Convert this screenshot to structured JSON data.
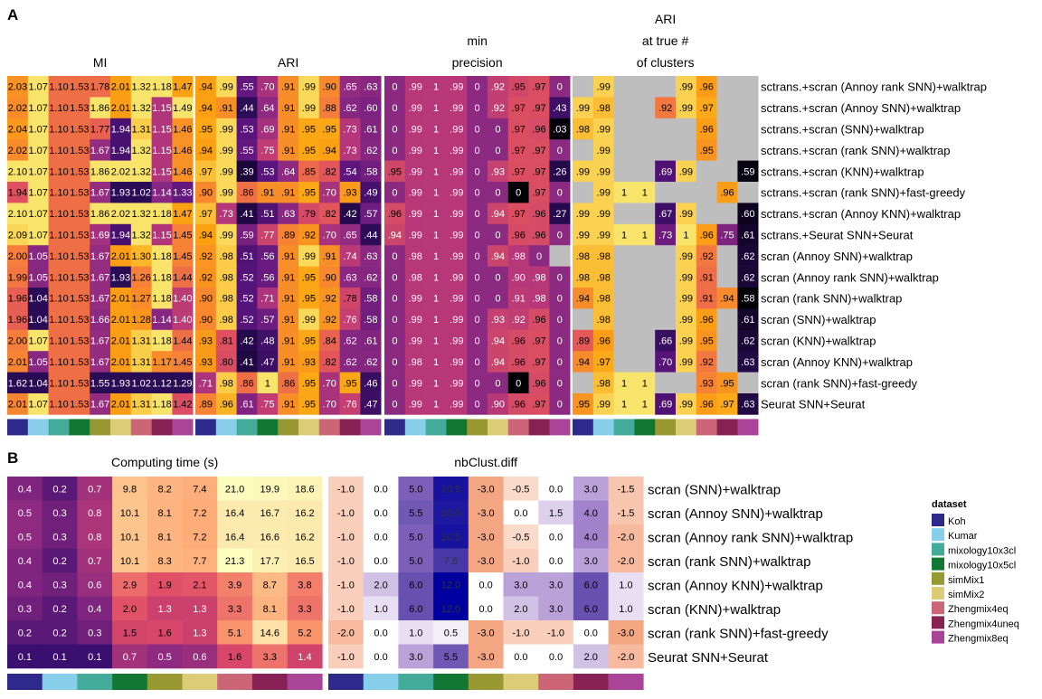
{
  "panel_letters": {
    "a": "A",
    "b": "B"
  },
  "legend": {
    "title": "dataset",
    "datasets": [
      {
        "name": "Koh",
        "color": "#2E2A8C"
      },
      {
        "name": "Kumar",
        "color": "#87CEEB"
      },
      {
        "name": "mixology10x3cl",
        "color": "#44AA99"
      },
      {
        "name": "mixology10x5cl",
        "color": "#117733"
      },
      {
        "name": "simMix1",
        "color": "#999933"
      },
      {
        "name": "simMix2",
        "color": "#DDCC77"
      },
      {
        "name": "Zhengmix4eq",
        "color": "#CC6677"
      },
      {
        "name": "Zhengmix4uneq",
        "color": "#882255"
      },
      {
        "name": "Zhengmix8eq",
        "color": "#AA4499"
      }
    ]
  },
  "chart_data": [
    {
      "type": "heatmap",
      "panel": "A",
      "title_mi": "MI",
      "title_ari": "ARI",
      "title_minprec": [
        "min",
        "precision"
      ],
      "title_ari_true": [
        "ARI",
        "at true #",
        "of clusters"
      ],
      "rows": [
        "sctrans.+scran (Annoy rank SNN)+walktrap",
        "sctrans.+scran (Annoy SNN)+walktrap",
        "sctrans.+scran (SNN)+walktrap",
        "sctrans.+scran (rank SNN)+walktrap",
        "sctrans.+scran (KNN)+walktrap",
        "sctrans.+scran (rank SNN)+fast-greedy",
        "sctrans.+scran (Annoy KNN)+walktrap",
        "sctrans.+Seurat SNN+Seurat",
        "scran (Annoy SNN)+walktrap",
        "scran (Annoy rank SNN)+walktrap",
        "scran (rank SNN)+walktrap",
        "scran (SNN)+walktrap",
        "scran (KNN)+walktrap",
        "scran (Annoy KNN)+walktrap",
        "scran (rank SNN)+fast-greedy",
        "Seurat SNN+Seurat"
      ],
      "mi": [
        [
          "2.03",
          "1.07",
          "1.10",
          "1.53",
          "1.78",
          "2.01",
          "1.32",
          "1.18",
          "1.47"
        ],
        [
          "2.02",
          "1.07",
          "1.10",
          "1.53",
          "1.86",
          "2.01",
          "1.32",
          "1.15",
          "1.49"
        ],
        [
          "2.04",
          "1.07",
          "1.10",
          "1.53",
          "1.77",
          "1.94",
          "1.31",
          "1.15",
          "1.46"
        ],
        [
          "2.02",
          "1.07",
          "1.10",
          "1.53",
          "1.67",
          "1.94",
          "1.32",
          "1.15",
          "1.46"
        ],
        [
          "2.10",
          "1.07",
          "1.10",
          "1.53",
          "1.86",
          "2.02",
          "1.32",
          "1.15",
          "1.46"
        ],
        [
          "1.94",
          "1.07",
          "1.10",
          "1.53",
          "1.67",
          "1.93",
          "1.02",
          "1.14",
          "1.33"
        ],
        [
          "2.10",
          "1.07",
          "1.10",
          "1.53",
          "1.86",
          "2.02",
          "1.32",
          "1.18",
          "1.47"
        ],
        [
          "2.09",
          "1.07",
          "1.10",
          "1.53",
          "1.69",
          "1.94",
          "1.32",
          "1.15",
          "1.45"
        ],
        [
          "2.00",
          "1.05",
          "1.10",
          "1.53",
          "1.67",
          "2.01",
          "1.30",
          "1.18",
          "1.45"
        ],
        [
          "1.99",
          "1.05",
          "1.10",
          "1.53",
          "1.67",
          "1.93",
          "1.26",
          "1.18",
          "1.44"
        ],
        [
          "1.96",
          "1.04",
          "1.10",
          "1.53",
          "1.67",
          "2.01",
          "1.27",
          "1.18",
          "1.40"
        ],
        [
          "1.96",
          "1.04",
          "1.10",
          "1.53",
          "1.66",
          "2.01",
          "1.28",
          "1.14",
          "1.40"
        ],
        [
          "2.00",
          "1.07",
          "1.10",
          "1.53",
          "1.67",
          "2.01",
          "1.31",
          "1.18",
          "1.44"
        ],
        [
          "2.01",
          "1.05",
          "1.10",
          "1.53",
          "1.67",
          "2.01",
          "1.31",
          "1.17",
          "1.45"
        ],
        [
          "1.62",
          "1.04",
          "1.10",
          "1.53",
          "1.55",
          "1.93",
          "1.02",
          "1.12",
          "1.29"
        ],
        [
          "2.01",
          "1.07",
          "1.10",
          "1.53",
          "1.67",
          "2.01",
          "1.31",
          "1.18",
          "1.42"
        ]
      ],
      "ari": [
        [
          ".94",
          ".99",
          ".55",
          ".70",
          ".91",
          ".99",
          ".90",
          ".65",
          ".63"
        ],
        [
          ".94",
          ".91",
          ".44",
          ".64",
          ".91",
          ".99",
          ".88",
          ".62",
          ".60"
        ],
        [
          ".95",
          ".99",
          ".53",
          ".69",
          ".91",
          ".95",
          ".95",
          ".73",
          ".61"
        ],
        [
          ".94",
          ".99",
          ".55",
          ".75",
          ".91",
          ".95",
          ".94",
          ".73",
          ".62"
        ],
        [
          ".97",
          ".99",
          ".39",
          ".53",
          ".64",
          ".85",
          ".82",
          ".54",
          ".58"
        ],
        [
          ".90",
          ".99",
          ".86",
          ".91",
          ".91",
          ".95",
          ".70",
          ".93",
          ".49"
        ],
        [
          ".97",
          ".73",
          ".41",
          ".51",
          ".63",
          ".79",
          ".82",
          ".42",
          ".57"
        ],
        [
          ".94",
          ".99",
          ".59",
          ".77",
          ".89",
          ".92",
          ".70",
          ".65",
          ".44"
        ],
        [
          ".92",
          ".98",
          ".51",
          ".56",
          ".91",
          ".99",
          ".91",
          ".74",
          ".63"
        ],
        [
          ".92",
          ".98",
          ".52",
          ".56",
          ".91",
          ".95",
          ".90",
          ".63",
          ".62"
        ],
        [
          ".90",
          ".98",
          ".52",
          ".71",
          ".91",
          ".95",
          ".92",
          ".78",
          ".58"
        ],
        [
          ".90",
          ".98",
          ".52",
          ".57",
          ".91",
          ".99",
          ".92",
          ".76",
          ".58"
        ],
        [
          ".93",
          ".81",
          ".42",
          ".48",
          ".91",
          ".95",
          ".84",
          ".62",
          ".61"
        ],
        [
          ".93",
          ".80",
          ".41",
          ".47",
          ".91",
          ".93",
          ".82",
          ".62",
          ".62"
        ],
        [
          ".71",
          ".98",
          ".86",
          "1",
          ".86",
          ".95",
          ".70",
          ".95",
          ".46"
        ],
        [
          ".89",
          ".96",
          ".61",
          ".75",
          ".91",
          ".95",
          ".70",
          ".76",
          ".47"
        ]
      ],
      "min_precision": [
        [
          "0",
          ".99",
          "1",
          ".99",
          "0",
          ".92",
          ".95",
          ".97",
          "0"
        ],
        [
          "0",
          ".99",
          "1",
          ".99",
          "0",
          ".92",
          ".97",
          ".97",
          ".43"
        ],
        [
          "0",
          ".99",
          "1",
          ".99",
          "0",
          "0",
          ".97",
          ".96",
          ".03"
        ],
        [
          "0",
          ".99",
          "1",
          ".99",
          "0",
          "0",
          ".97",
          ".97",
          "0"
        ],
        [
          ".95",
          ".99",
          "1",
          ".99",
          "0",
          ".93",
          ".97",
          ".97",
          ".26"
        ],
        [
          "0",
          ".99",
          "1",
          ".99",
          "0",
          "0",
          "0",
          ".97",
          "0"
        ],
        [
          ".96",
          ".99",
          "1",
          ".99",
          "0",
          ".94",
          ".97",
          ".96",
          ".27"
        ],
        [
          ".94",
          ".99",
          "1",
          ".99",
          "0",
          "0",
          ".96",
          ".96",
          "0"
        ],
        [
          "0",
          ".98",
          "1",
          ".99",
          "0",
          ".94",
          ".98",
          "0",
          ""
        ],
        [
          "0",
          ".98",
          "1",
          ".99",
          "0",
          "0",
          ".90",
          ".98",
          "0"
        ],
        [
          "0",
          ".99",
          "1",
          ".99",
          "0",
          "0",
          ".91",
          ".98",
          "0"
        ],
        [
          "0",
          ".99",
          "1",
          ".99",
          "0",
          ".93",
          ".92",
          ".96",
          "0"
        ],
        [
          "0",
          ".99",
          "1",
          ".99",
          "0",
          ".94",
          ".96",
          ".97",
          "0"
        ],
        [
          "0",
          ".98",
          "1",
          ".99",
          "0",
          ".94",
          ".96",
          ".97",
          "0"
        ],
        [
          "0",
          ".99",
          "1",
          ".99",
          "0",
          "0",
          "0",
          ".96",
          "0"
        ],
        [
          "0",
          ".99",
          "1",
          ".99",
          "0",
          ".90",
          ".96",
          ".97",
          "0"
        ]
      ],
      "ari_true": [
        [
          "",
          ".99",
          "",
          "",
          "",
          ".99",
          ".96",
          "",
          ""
        ],
        [
          ".99",
          ".98",
          "",
          "",
          ".92",
          ".99",
          ".97",
          "",
          ""
        ],
        [
          ".98",
          ".99",
          "",
          "",
          "",
          "",
          ".96",
          "",
          ""
        ],
        [
          "",
          ".99",
          "",
          "",
          "",
          "",
          ".95",
          "",
          ""
        ],
        [
          ".99",
          ".99",
          "",
          "",
          ".69",
          ".99",
          "",
          "",
          ".59"
        ],
        [
          "",
          ".99",
          "1",
          "1",
          "",
          "",
          "",
          ".96",
          ""
        ],
        [
          ".99",
          ".99",
          "",
          "",
          ".67",
          ".99",
          "",
          "",
          ".60"
        ],
        [
          ".99",
          ".99",
          "1",
          "1",
          ".73",
          "1",
          ".96",
          ".75",
          ".61"
        ],
        [
          ".98",
          ".98",
          "",
          "",
          "",
          ".99",
          ".92",
          "",
          ".62"
        ],
        [
          ".98",
          ".98",
          "",
          "",
          "",
          ".99",
          ".91",
          "",
          ".62"
        ],
        [
          ".94",
          ".98",
          "",
          "",
          "",
          ".99",
          ".91",
          ".94",
          ".58"
        ],
        [
          "",
          ".98",
          "",
          "",
          "",
          ".99",
          ".96",
          "",
          ".61"
        ],
        [
          ".89",
          ".96",
          "",
          "",
          ".66",
          ".99",
          ".95",
          "",
          ".62"
        ],
        [
          ".94",
          ".97",
          "",
          "",
          ".70",
          ".99",
          ".92",
          "",
          ".63"
        ],
        [
          "",
          ".98",
          "1",
          "1",
          "",
          "",
          ".93",
          ".95",
          ""
        ],
        [
          ".95",
          ".99",
          "1",
          "1",
          ".69",
          ".99",
          ".96",
          ".97",
          ".63"
        ]
      ]
    },
    {
      "type": "heatmap",
      "panel": "B",
      "title_time": "Computing time (s)",
      "title_nb": "nbClust.diff",
      "rows": [
        "scran (SNN)+walktrap",
        "scran (Annoy SNN)+walktrap",
        "scran (Annoy rank SNN)+walktrap",
        "scran (rank SNN)+walktrap",
        "scran (Annoy KNN)+walktrap",
        "scran (KNN)+walktrap",
        "scran (rank SNN)+fast-greedy",
        "Seurat SNN+Seurat"
      ],
      "time": [
        [
          0.4,
          0.2,
          0.7,
          9.8,
          8.2,
          7.4,
          21.0,
          19.9,
          18.6
        ],
        [
          0.5,
          0.3,
          0.8,
          10.1,
          8.1,
          7.2,
          16.4,
          16.7,
          16.2
        ],
        [
          0.5,
          0.3,
          0.8,
          10.1,
          8.1,
          7.2,
          16.4,
          16.6,
          16.2
        ],
        [
          0.4,
          0.2,
          0.7,
          10.1,
          8.3,
          7.7,
          21.3,
          17.7,
          16.5
        ],
        [
          0.4,
          0.3,
          0.6,
          2.9,
          1.9,
          2.1,
          3.9,
          8.7,
          3.8
        ],
        [
          0.3,
          0.2,
          0.4,
          2.0,
          1.3,
          1.3,
          3.3,
          8.1,
          3.3
        ],
        [
          0.2,
          0.2,
          0.3,
          1.5,
          1.6,
          1.3,
          5.1,
          14.6,
          5.2
        ],
        [
          0.1,
          0.1,
          0.1,
          0.7,
          0.5,
          0.6,
          1.6,
          3.3,
          1.4
        ]
      ],
      "nbclust": [
        [
          -1.0,
          0.0,
          5.0,
          10.5,
          -3.0,
          -0.5,
          0.0,
          3.0,
          -1.5
        ],
        [
          -1.0,
          0.0,
          5.5,
          10.0,
          -3.0,
          0.0,
          1.5,
          4.0,
          -1.5
        ],
        [
          -1.0,
          0.0,
          5.0,
          10.5,
          -3.0,
          -0.5,
          0.0,
          4.0,
          -2.0
        ],
        [
          -1.0,
          0.0,
          5.0,
          7.5,
          -3.0,
          -1.0,
          0.0,
          3.0,
          -2.0
        ],
        [
          -1.0,
          2.0,
          6.0,
          12.0,
          0.0,
          3.0,
          3.0,
          6.0,
          1.0
        ],
        [
          -1.0,
          1.0,
          6.0,
          12.0,
          0.0,
          2.0,
          3.0,
          6.0,
          1.0
        ],
        [
          -2.0,
          0.0,
          1.0,
          0.5,
          -3.0,
          -1.0,
          -1.0,
          0.0,
          -3.0
        ],
        [
          -1.0,
          0.0,
          3.0,
          5.5,
          -3.0,
          0.0,
          0.0,
          2.0,
          -2.0
        ]
      ]
    }
  ]
}
